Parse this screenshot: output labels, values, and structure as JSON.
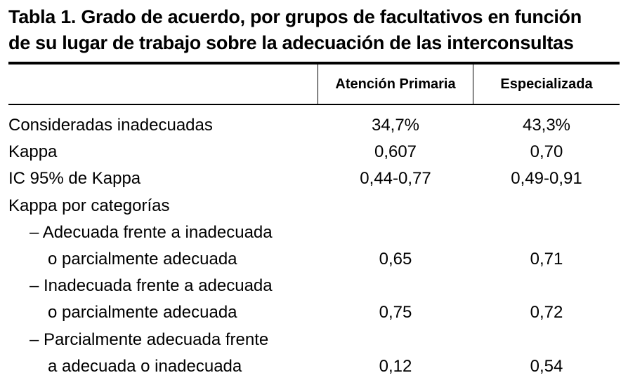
{
  "title": {
    "line1": "Tabla 1. Grado de acuerdo, por grupos de facultativos en función",
    "line2": "de su lugar de trabajo sobre la adecuación de las interconsultas"
  },
  "table": {
    "headers": [
      "",
      "Atención Primaria",
      "Especializada"
    ],
    "rows": [
      {
        "label": "Consideradas inadecuadas",
        "v1": "34,7%",
        "v2": "43,3%"
      },
      {
        "label": "Kappa",
        "v1": "0,607",
        "v2": "0,70"
      },
      {
        "label": "IC 95% de Kappa",
        "v1": "0,44-0,77",
        "v2": "0,49-0,91"
      },
      {
        "label": "Kappa por categorías",
        "v1": "",
        "v2": ""
      },
      {
        "label": "– Adecuada frente a inadecuada",
        "v1": "",
        "v2": ""
      },
      {
        "label": "o parcialmente adecuada",
        "v1": "0,65",
        "v2": "0,71"
      },
      {
        "label": "– Inadecuada frente a adecuada",
        "v1": "",
        "v2": ""
      },
      {
        "label": "o parcialmente adecuada",
        "v1": "0,75",
        "v2": "0,72"
      },
      {
        "label": "– Parcialmente adecuada frente",
        "v1": "",
        "v2": ""
      },
      {
        "label": "a adecuada o inadecuada",
        "v1": "0,12",
        "v2": "0,54"
      }
    ]
  }
}
